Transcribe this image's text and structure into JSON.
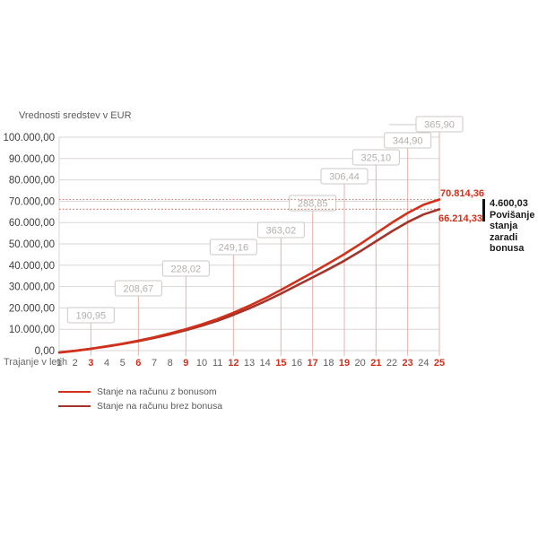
{
  "title": "Vrednosti sredstev v EUR",
  "x_axis_title": "Trajanje v letih",
  "annotation": {
    "amount": "4.600,03",
    "label": "Povišanje stanja zaradi bonusa",
    "bar_color": "#111111"
  },
  "chart_data": {
    "type": "line",
    "title": "Vrednosti sredstev v EUR",
    "xlabel": "Trajanje v letih",
    "ylabel": "EUR",
    "x": [
      1,
      2,
      3,
      4,
      5,
      6,
      7,
      8,
      9,
      10,
      11,
      12,
      13,
      14,
      15,
      16,
      17,
      18,
      19,
      20,
      21,
      22,
      23,
      24,
      25
    ],
    "x_red": [
      3,
      6,
      9,
      12,
      15,
      17,
      19,
      21,
      23,
      25
    ],
    "xlim": [
      1,
      25
    ],
    "ylim": [
      0,
      100000
    ],
    "grid": "horizontal",
    "legend_position": "bottom-left",
    "yticks": [
      {
        "value": 100000,
        "label": "100.000,00"
      },
      {
        "value": 90000,
        "label": "90.000,00"
      },
      {
        "value": 80000,
        "label": "80.000,00"
      },
      {
        "value": 70000,
        "label": "70.000,00"
      },
      {
        "value": 60000,
        "label": "60.000,00"
      },
      {
        "value": 50000,
        "label": "50.000,00"
      },
      {
        "value": 40000,
        "label": "40.000,00"
      },
      {
        "value": 30000,
        "label": "30.000,00"
      },
      {
        "value": 20000,
        "label": "20.000,00"
      },
      {
        "value": 10000,
        "label": "10.000,00"
      },
      {
        "value": 0,
        "label": "0,00"
      }
    ],
    "series": [
      {
        "name": "Stanje na računu z bonusom",
        "color": "#d2301b",
        "end_label": "70.814,36",
        "end_value": 70814.36,
        "values": [
          -900,
          -100,
          900,
          2000,
          3250,
          4650,
          6250,
          8050,
          10050,
          12300,
          14850,
          17750,
          21000,
          24550,
          28400,
          32500,
          36600,
          40800,
          45200,
          49900,
          54900,
          59900,
          64500,
          68300,
          70814.36
        ]
      },
      {
        "name": "Stanje na računu brez bonusa",
        "color": "#a2342a",
        "end_label": "66.214,33",
        "end_value": 66214.33,
        "values": [
          -910,
          -130,
          830,
          1890,
          3090,
          4420,
          5940,
          7640,
          9530,
          11650,
          14050,
          16770,
          19810,
          23120,
          26700,
          30500,
          34300,
          38100,
          42100,
          46500,
          51200,
          55900,
          60200,
          63800,
          66214.33
        ]
      }
    ],
    "callouts": [
      {
        "year": 3,
        "label": "190,95",
        "box_top": 343
      },
      {
        "year": 6,
        "label": "208,67",
        "box_top": 313
      },
      {
        "year": 9,
        "label": "228,02",
        "box_top": 291
      },
      {
        "year": 12,
        "label": "249,16",
        "box_top": 267
      },
      {
        "year": 15,
        "label": "363,02",
        "box_top": 248
      },
      {
        "year": 17,
        "label": "288,85",
        "box_top": 218
      },
      {
        "year": 19,
        "label": "306,44",
        "box_top": 188
      },
      {
        "year": 21,
        "label": "325,10",
        "box_top": 167
      },
      {
        "year": 23,
        "label": "344,90",
        "box_top": 148
      },
      {
        "year": 25,
        "label": "365,90",
        "box_top": 130,
        "leader": true
      }
    ],
    "colors": {
      "grid": "#dad5d2",
      "callout_line": "#e3b3aa",
      "callout_box_border": "#ccc8c5",
      "callout_text": "#b3afac",
      "dotted_line": "#d08478",
      "ytick_text": "#3d3d3d",
      "xtick_text": "#5f5f5f",
      "xtick_red": "#d2301b"
    }
  }
}
